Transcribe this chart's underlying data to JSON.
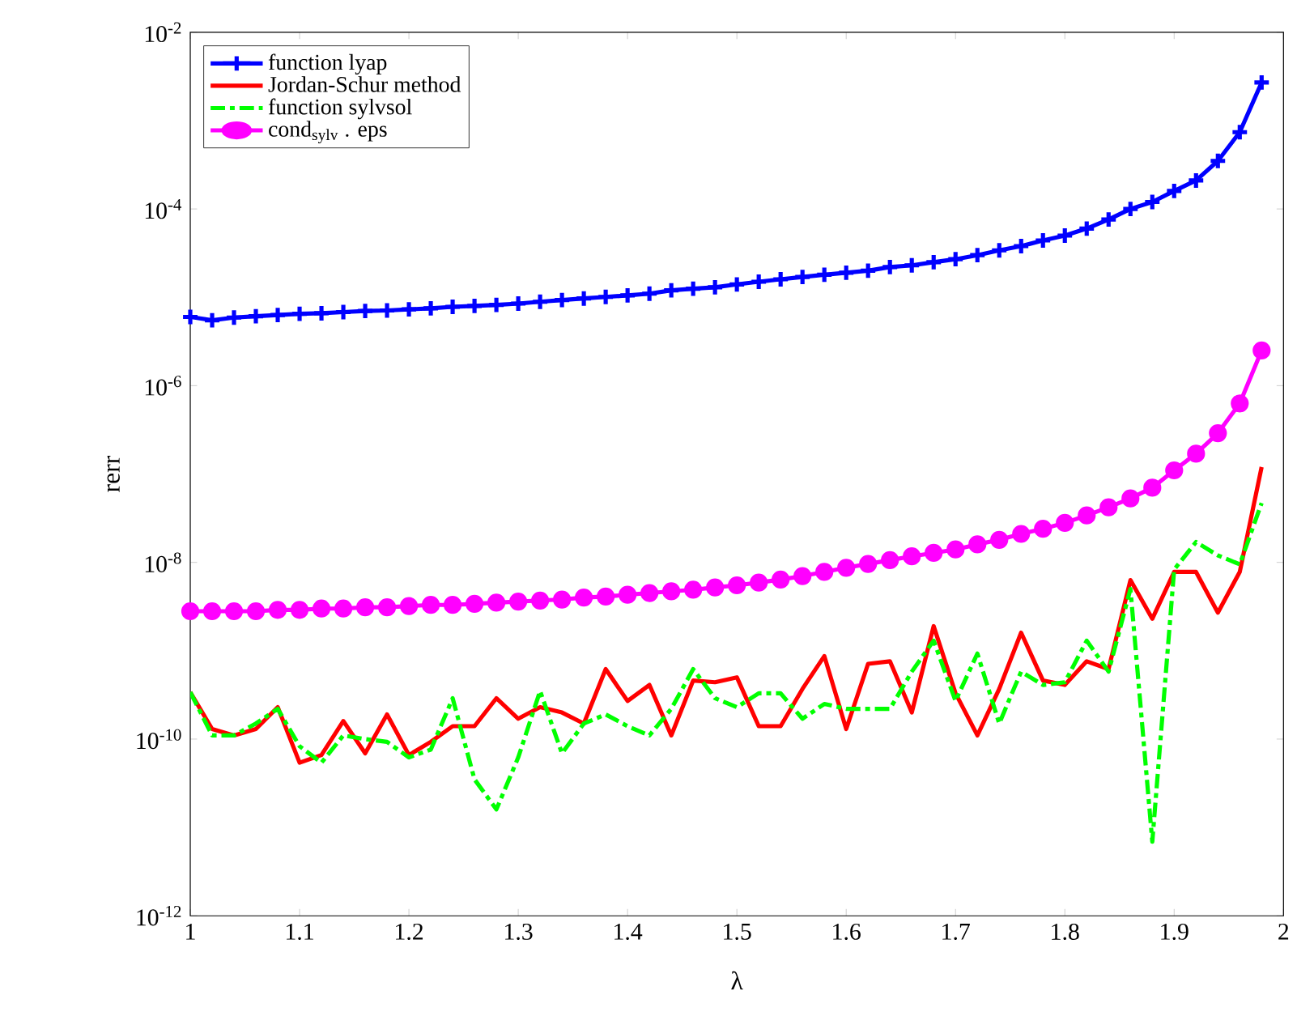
{
  "chart_data": {
    "type": "line",
    "xlabel": "λ",
    "ylabel": "rerr",
    "log": "y",
    "legend": "top left",
    "grid": false,
    "x": [
      1,
      1.02,
      1.04,
      1.06,
      1.08,
      1.1,
      1.12,
      1.14,
      1.16,
      1.18,
      1.2,
      1.22,
      1.24,
      1.26,
      1.28,
      1.3,
      1.32,
      1.34,
      1.36,
      1.38,
      1.4,
      1.42,
      1.44,
      1.46,
      1.48,
      1.5,
      1.52,
      1.54,
      1.56,
      1.58,
      1.6,
      1.62,
      1.64,
      1.66,
      1.68,
      1.7,
      1.72,
      1.74,
      1.76,
      1.78,
      1.8,
      1.82,
      1.84,
      1.86,
      1.88,
      1.9,
      1.92,
      1.94,
      1.96,
      1.98
    ],
    "xlim": [
      1,
      2
    ],
    "xticks": [
      1,
      1.1,
      1.2,
      1.3,
      1.4,
      1.5,
      1.6,
      1.7,
      1.8,
      1.9,
      2
    ],
    "ylim": [
      1e-12,
      0.01
    ],
    "yticks": [
      {
        "value": 1e-12,
        "label": "10$^{-12}$"
      },
      {
        "value": 1e-10,
        "label": "10$^{-10}$"
      },
      {
        "value": 1e-08,
        "label": "10$^{-8}$"
      },
      {
        "value": 1e-06,
        "label": "10$^{-6}$"
      },
      {
        "value": 0.0001,
        "label": "10$^{-4}$"
      },
      {
        "value": 0.01,
        "label": "10$^{-2}$"
      }
    ],
    "series": [
      {
        "name": "function lyap",
        "color": "#0000ff",
        "marker": "cross",
        "line_style": "solid",
        "values": [
          6e-06,
          5.5e-06,
          5.9e-06,
          6.1e-06,
          6.3e-06,
          6.5e-06,
          6.6e-06,
          6.8e-06,
          7e-06,
          7.1e-06,
          7.3e-06,
          7.5e-06,
          7.8e-06,
          8e-06,
          8.2e-06,
          8.5e-06,
          8.9e-06,
          9.3e-06,
          9.7e-06,
          1.01e-05,
          1.05e-05,
          1.1e-05,
          1.2e-05,
          1.25e-05,
          1.3e-05,
          1.4e-05,
          1.5e-05,
          1.6e-05,
          1.7e-05,
          1.8e-05,
          1.9e-05,
          2e-05,
          2.2e-05,
          2.3e-05,
          2.5e-05,
          2.7e-05,
          3e-05,
          3.4e-05,
          3.8e-05,
          4.4e-05,
          5e-05,
          6e-05,
          7.6e-05,
          0.0001,
          0.00012,
          0.00016,
          0.00021,
          0.00035,
          0.00074,
          0.0027
        ]
      },
      {
        "name": "Jordan-Schur method",
        "color": "#ff0000",
        "marker": "none",
        "line_style": "solid",
        "values": [
          3.4e-10,
          1.3e-10,
          1.1e-10,
          1.3e-10,
          2.3e-10,
          5.4e-11,
          6.6e-11,
          1.6e-10,
          6.9e-11,
          1.9e-10,
          6.6e-11,
          9.3e-11,
          1.4e-10,
          1.4e-10,
          2.9e-10,
          1.7e-10,
          2.3e-10,
          2e-10,
          1.5e-10,
          6.2e-10,
          2.7e-10,
          4.1e-10,
          1.1e-10,
          4.6e-10,
          4.4e-10,
          5e-10,
          1.4e-10,
          1.4e-10,
          3.7e-10,
          8.7e-10,
          1.3e-10,
          7.1e-10,
          7.6e-10,
          2e-10,
          1.9e-09,
          3.3e-10,
          1.1e-10,
          3.7e-10,
          1.6e-09,
          4.6e-10,
          4.1e-10,
          7.6e-10,
          6.2e-10,
          6.3e-09,
          2.3e-09,
          7.8e-09,
          7.8e-09,
          2.7e-09,
          7.8e-09,
          1.2e-07
        ]
      },
      {
        "name": "function sylvsol",
        "color": "#00ff00",
        "marker": "none",
        "line_style": "dashed",
        "values": [
          3.4e-10,
          1.1e-10,
          1.1e-10,
          1.5e-10,
          2.2e-10,
          8.3e-11,
          5.4e-11,
          1.1e-10,
          1e-10,
          9.3e-11,
          6.2e-11,
          7.6e-11,
          2.9e-10,
          3.5e-11,
          1.6e-11,
          6.2e-11,
          3.5e-10,
          6.9e-11,
          1.5e-10,
          1.9e-10,
          1.4e-10,
          1.1e-10,
          2.2e-10,
          6.2e-10,
          2.9e-10,
          2.3e-10,
          3.3e-10,
          3.3e-10,
          1.7e-10,
          2.5e-10,
          2.2e-10,
          2.2e-10,
          2.2e-10,
          5.8e-10,
          1.3e-09,
          2.7e-10,
          9.3e-10,
          1.5e-10,
          5.8e-10,
          4.1e-10,
          4.4e-10,
          1.3e-09,
          5.8e-10,
          5e-09,
          6.9e-12,
          8.3e-09,
          1.7e-08,
          1.2e-08,
          9.5e-09,
          4.7e-08
        ]
      },
      {
        "name": "cond$_{sylv}$ . eps",
        "color": "#ff00ff",
        "marker": "circle",
        "line_style": "solid",
        "values": [
          2.8e-09,
          2.8e-09,
          2.8e-09,
          2.8e-09,
          2.9e-09,
          2.9e-09,
          3e-09,
          3e-09,
          3.1e-09,
          3.1e-09,
          3.2e-09,
          3.3e-09,
          3.3e-09,
          3.4e-09,
          3.5e-09,
          3.6e-09,
          3.7e-09,
          3.8e-09,
          4e-09,
          4.1e-09,
          4.3e-09,
          4.5e-09,
          4.7e-09,
          4.9e-09,
          5.2e-09,
          5.5e-09,
          5.9e-09,
          6.4e-09,
          7e-09,
          7.8e-09,
          8.7e-09,
          9.6e-09,
          1.06e-08,
          1.17e-08,
          1.28e-08,
          1.4e-08,
          1.6e-08,
          1.8e-08,
          2.1e-08,
          2.4e-08,
          2.8e-08,
          3.4e-08,
          4.2e-08,
          5.3e-08,
          7e-08,
          1.1e-07,
          1.7e-07,
          2.9e-07,
          6.3e-07,
          2.5e-06
        ]
      }
    ]
  }
}
